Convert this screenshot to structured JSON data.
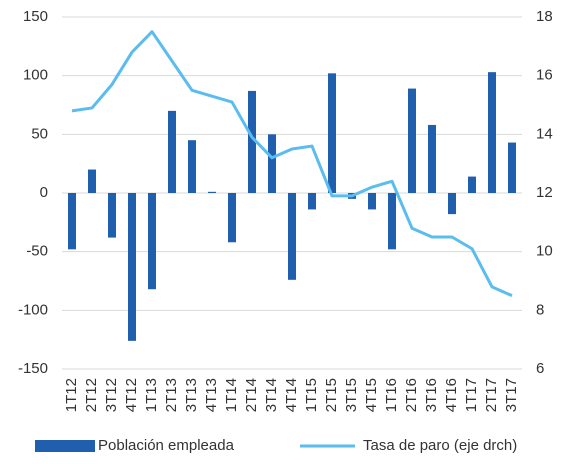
{
  "chart_data": {
    "type": "bar-line",
    "categories": [
      "1T12",
      "2T12",
      "3T12",
      "4T12",
      "1T13",
      "2T13",
      "3T13",
      "4T13",
      "1T14",
      "2T14",
      "3T14",
      "4T14",
      "1T15",
      "2T15",
      "3T15",
      "4T15",
      "1T16",
      "2T16",
      "3T16",
      "4T16",
      "1T17",
      "2T17",
      "3T17"
    ],
    "series": [
      {
        "name": "Población empleada",
        "type": "bar",
        "color": "#1f5fae",
        "values": [
          -48,
          20,
          -38,
          -126,
          -82,
          70,
          45,
          1,
          -42,
          87,
          50,
          -74,
          -14,
          102,
          -5,
          -14,
          -48,
          89,
          58,
          -18,
          14,
          103,
          43
        ]
      },
      {
        "name": "Tasa de paro (eje drch)",
        "type": "line",
        "axis": "y2",
        "color": "#5bbcf0",
        "values": [
          14.8,
          14.9,
          15.7,
          16.8,
          17.5,
          16.5,
          15.5,
          15.3,
          15.1,
          13.9,
          13.2,
          13.5,
          13.6,
          11.9,
          11.9,
          12.2,
          12.4,
          10.8,
          10.5,
          10.5,
          10.1,
          8.8,
          8.5
        ]
      }
    ],
    "ylim": [
      -150,
      150
    ],
    "yticks": [
      -150,
      -100,
      -50,
      0,
      50,
      100,
      150
    ],
    "y2lim": [
      6,
      18
    ],
    "y2ticks": [
      6,
      8,
      10,
      12,
      14,
      16,
      18
    ],
    "grid": true,
    "legend": "bottom"
  }
}
